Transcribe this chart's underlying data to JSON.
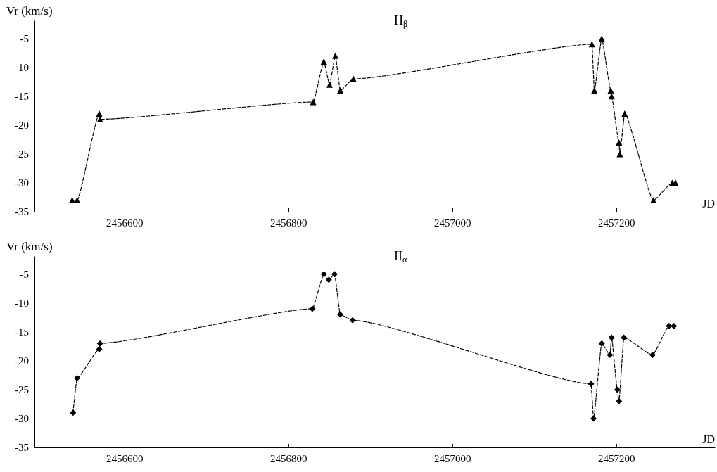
{
  "chart_data": [
    {
      "type": "line",
      "ylabel": "Vr (km/s)",
      "xlabel": "JD",
      "annotations": [
        "H$_{β}$"
      ],
      "marker": "triangle",
      "line_style": "dashed",
      "grid": false,
      "xlim": [
        2456490,
        2457320
      ],
      "xticks": [
        2456600,
        2456800,
        2457000,
        2457200
      ],
      "ylim": [
        -35,
        -2
      ],
      "yticks": [
        -35,
        -30,
        -25,
        -20,
        -15,
        {
          "value": -10,
          "label": "10"
        },
        -5
      ],
      "x": [
        2456536,
        2456542,
        2456569,
        2456570,
        2456830,
        2456843,
        2456850,
        2456857,
        2456863,
        2456879,
        2457170,
        2457173,
        2457182,
        2457193,
        2457194,
        2457203,
        2457204,
        2457210,
        2457245,
        2457268,
        2457272
      ],
      "series": [
        {
          "color": "#000000",
          "values": [
            -33,
            -33,
            -18,
            -19,
            -16,
            -9,
            -13,
            -8,
            -14,
            -12,
            -6,
            -14,
            -5,
            -14,
            -15,
            -23,
            -25,
            -18,
            -33,
            -30,
            -30
          ]
        }
      ]
    },
    {
      "type": "line",
      "ylabel": "Vr (km/s)",
      "xlabel": "JD",
      "annotations": [
        "II$_{α}$"
      ],
      "marker": "diamond",
      "line_style": "dashed",
      "grid": false,
      "xlim": [
        2456490,
        2457320
      ],
      "xticks": [
        2456600,
        2456800,
        2457000,
        2457200
      ],
      "ylim": [
        -35,
        -2
      ],
      "yticks": [
        -35,
        -30,
        -25,
        -20,
        -15,
        -10,
        -5
      ],
      "x": [
        2456537,
        2456542,
        2456569,
        2456570,
        2456829,
        2456843,
        2456849,
        2456856,
        2456863,
        2456878,
        2457169,
        2457172,
        2457182,
        2457192,
        2457194,
        2457201,
        2457203,
        2457209,
        2457244,
        2457264,
        2457270
      ],
      "series": [
        {
          "color": "#000000",
          "values": [
            -29,
            -23,
            -18,
            -17,
            -11,
            -5,
            -6,
            -5,
            -12,
            -13,
            -24,
            -30,
            -17,
            -19,
            -16,
            -25,
            -27,
            -16,
            -19,
            -14,
            -14
          ]
        }
      ]
    }
  ]
}
